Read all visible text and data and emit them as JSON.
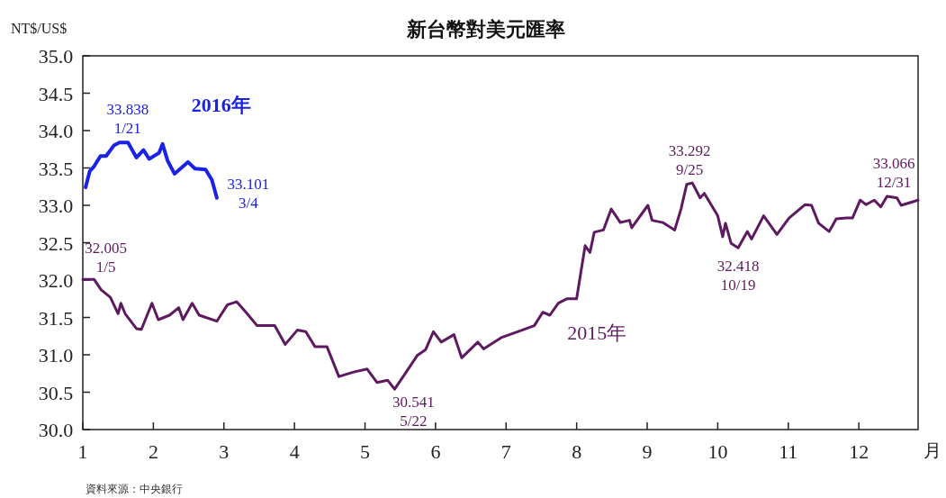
{
  "chart_data": {
    "type": "line",
    "title": "新台幣對美元匯率",
    "ylabel": "NT$/US$",
    "xlabel": "月",
    "xlim": [
      1,
      12.84
    ],
    "xticks": [
      1,
      2,
      3,
      4,
      5,
      6,
      7,
      8,
      9,
      10,
      11,
      12
    ],
    "ylim": [
      30,
      35
    ],
    "yticks": [
      {
        "value": 30,
        "label": "30.0"
      },
      {
        "value": 30.5,
        "label": "30.5"
      },
      {
        "value": 31,
        "label": "31.0"
      },
      {
        "value": 31.5,
        "label": "31.5"
      },
      {
        "value": 32,
        "label": "32.0"
      },
      {
        "value": 32.5,
        "label": "32.5"
      },
      {
        "value": 33,
        "label": "33.0"
      },
      {
        "value": 33.5,
        "label": "33.5"
      },
      {
        "value": 34,
        "label": "34.0"
      },
      {
        "value": 34.5,
        "label": "34.5"
      },
      {
        "value": 35,
        "label": "35.0"
      }
    ],
    "grid": false,
    "legend": false,
    "marker": "none",
    "line_style": "solid",
    "series": [
      {
        "name": "2016年",
        "color": "#1a22e6",
        "x": [
          1.04,
          1.1,
          1.16,
          1.25,
          1.33,
          1.44,
          1.52,
          1.64,
          1.76,
          1.86,
          1.94,
          2.08,
          2.13,
          2.2,
          2.3,
          2.49,
          2.59,
          2.74,
          2.83,
          2.9
        ],
        "values": [
          33.24,
          33.46,
          33.52,
          33.66,
          33.66,
          33.8,
          33.84,
          33.84,
          33.64,
          33.74,
          33.62,
          33.7,
          33.82,
          33.6,
          33.42,
          33.58,
          33.49,
          33.48,
          33.34,
          33.1
        ]
      },
      {
        "name": "2015年",
        "color": "#5e1a60",
        "x": [
          1.0,
          1.16,
          1.26,
          1.39,
          1.5,
          1.54,
          1.6,
          1.76,
          1.83,
          1.98,
          2.07,
          2.23,
          2.36,
          2.42,
          2.55,
          2.65,
          2.9,
          3.05,
          3.18,
          3.33,
          3.47,
          3.72,
          3.87,
          4.04,
          4.16,
          4.29,
          4.46,
          4.63,
          4.84,
          5.03,
          5.17,
          5.32,
          5.42,
          5.55,
          5.74,
          5.86,
          5.97,
          6.08,
          6.26,
          6.37,
          6.6,
          6.68,
          6.93,
          7.11,
          7.4,
          7.52,
          7.62,
          7.74,
          7.86,
          8.0,
          8.12,
          8.19,
          8.25,
          8.38,
          8.49,
          8.62,
          8.75,
          8.78,
          9.01,
          9.07,
          9.22,
          9.39,
          9.48,
          9.56,
          9.64,
          9.75,
          9.81,
          10.0,
          10.07,
          10.11,
          10.19,
          10.29,
          10.42,
          10.48,
          10.65,
          10.84,
          11.01,
          11.24,
          11.33,
          11.43,
          11.58,
          11.68,
          11.83,
          11.91,
          12.02,
          12.1,
          12.22,
          12.31,
          12.4,
          12.54,
          12.6,
          12.84
        ],
        "values": [
          32.01,
          32.01,
          31.87,
          31.77,
          31.55,
          31.69,
          31.55,
          31.35,
          31.34,
          31.69,
          31.47,
          31.53,
          31.63,
          31.47,
          31.69,
          31.53,
          31.45,
          31.67,
          31.71,
          31.55,
          31.39,
          31.39,
          31.14,
          31.33,
          31.31,
          31.11,
          31.11,
          30.71,
          30.77,
          30.81,
          30.63,
          30.66,
          30.54,
          30.72,
          30.99,
          31.07,
          31.31,
          31.17,
          31.27,
          30.96,
          31.17,
          31.08,
          31.23,
          31.29,
          31.39,
          31.57,
          31.53,
          31.69,
          31.75,
          31.75,
          32.46,
          32.37,
          32.64,
          32.67,
          32.95,
          32.77,
          32.8,
          32.7,
          33.0,
          32.8,
          32.77,
          32.67,
          32.95,
          33.28,
          33.3,
          33.1,
          33.16,
          32.86,
          32.58,
          32.76,
          32.49,
          32.43,
          32.65,
          32.55,
          32.86,
          32.61,
          32.83,
          33.01,
          33.0,
          32.76,
          32.65,
          32.82,
          32.83,
          32.83,
          33.07,
          33.01,
          33.07,
          32.98,
          33.12,
          33.1,
          33.0,
          33.07
        ]
      }
    ],
    "annotations": [
      {
        "text": "33.838\n1/21",
        "x": 1.52,
        "y": 33.838
      },
      {
        "text": "33.101\n3/4",
        "x": 2.9,
        "y": 33.101
      },
      {
        "text": "32.005\n1/5",
        "x": 1.16,
        "y": 32.005
      },
      {
        "text": "30.541\n5/22",
        "x": 5.42,
        "y": 30.541
      },
      {
        "text": "33.292\n9/25",
        "x": 9.64,
        "y": 33.292
      },
      {
        "text": "32.418\n10/19",
        "x": 10.29,
        "y": 32.418
      },
      {
        "text": "33.066\n12/31",
        "x": 12.84,
        "y": 33.066
      },
      "資料來源：中央銀行"
    ]
  }
}
